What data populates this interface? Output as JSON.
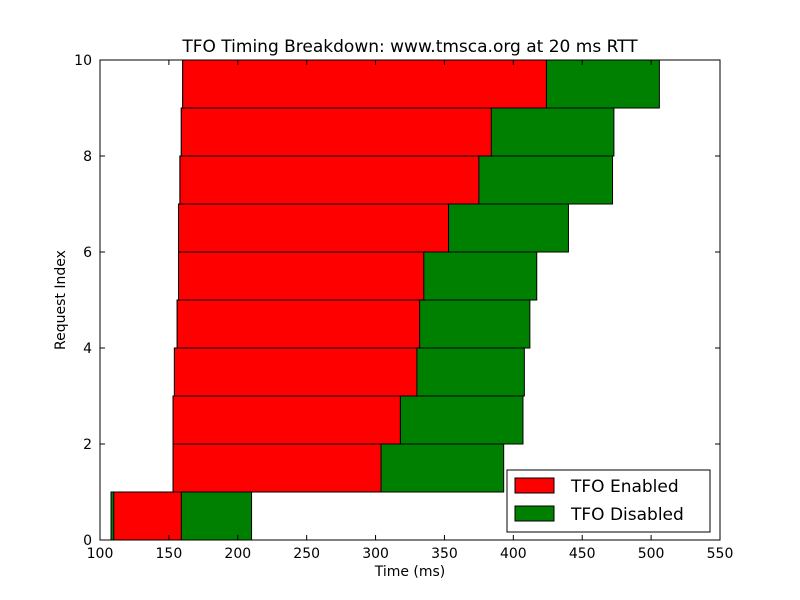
{
  "chart_data": {
    "type": "bar",
    "orientation": "horizontal",
    "stacked": "overlay",
    "title": "TFO Timing Breakdown: www.tmsca.org at 20 ms RTT",
    "xlabel": "Time (ms)",
    "ylabel": "Request Index",
    "xlim": [
      100,
      550
    ],
    "ylim": [
      0,
      10
    ],
    "x_ticks": [
      "100",
      "150",
      "200",
      "250",
      "300",
      "350",
      "400",
      "450",
      "500",
      "550"
    ],
    "y_ticks": [
      "0",
      "2",
      "4",
      "6",
      "8",
      "10"
    ],
    "grid": false,
    "legend_position": "lower-right",
    "series": [
      {
        "name": "TFO Enabled",
        "color": "#ff0000",
        "bars": [
          {
            "index": 0,
            "start": 110,
            "end": 159
          },
          {
            "index": 1,
            "start": 153,
            "end": 304
          },
          {
            "index": 2,
            "start": 153,
            "end": 318
          },
          {
            "index": 3,
            "start": 154,
            "end": 330
          },
          {
            "index": 4,
            "start": 156,
            "end": 332
          },
          {
            "index": 5,
            "start": 157,
            "end": 335
          },
          {
            "index": 6,
            "start": 157,
            "end": 353
          },
          {
            "index": 7,
            "start": 158,
            "end": 375
          },
          {
            "index": 8,
            "start": 159,
            "end": 384
          },
          {
            "index": 9,
            "start": 160,
            "end": 424
          }
        ]
      },
      {
        "name": "TFO Disabled",
        "color": "#008000",
        "bars": [
          {
            "index": 0,
            "start": 108,
            "end": 210
          },
          {
            "index": 1,
            "start": 153,
            "end": 393
          },
          {
            "index": 2,
            "start": 153,
            "end": 407
          },
          {
            "index": 3,
            "start": 154,
            "end": 408
          },
          {
            "index": 4,
            "start": 156,
            "end": 412
          },
          {
            "index": 5,
            "start": 157,
            "end": 417
          },
          {
            "index": 6,
            "start": 157,
            "end": 440
          },
          {
            "index": 7,
            "start": 158,
            "end": 472
          },
          {
            "index": 8,
            "start": 159,
            "end": 473
          },
          {
            "index": 9,
            "start": 160,
            "end": 506
          }
        ]
      }
    ]
  }
}
